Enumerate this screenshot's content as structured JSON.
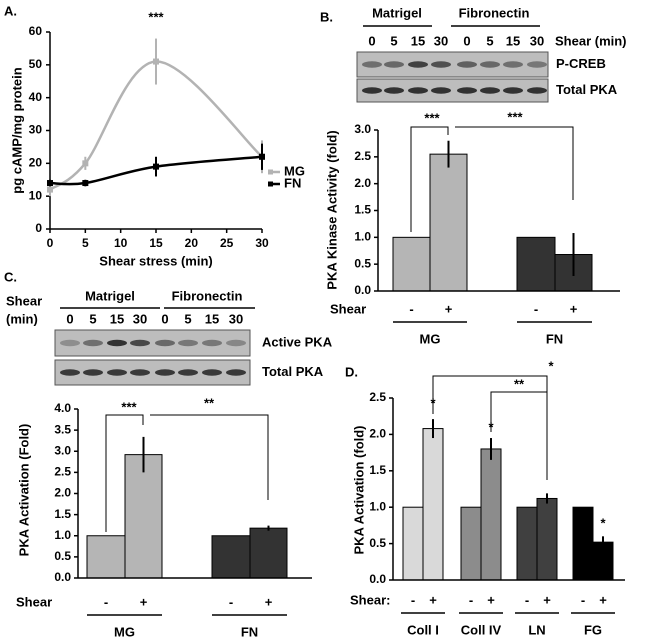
{
  "chart_data": [
    {
      "type": "line",
      "panel": "A.",
      "ylabel": "pg cAMP/mg protein",
      "xlabel": "Shear stress (min)",
      "x": [
        0,
        5,
        15,
        30
      ],
      "series": [
        {
          "name": "MG",
          "color": "#b3b3b3",
          "values": [
            12,
            20,
            51,
            22
          ],
          "errors": [
            2,
            2,
            7,
            5
          ]
        },
        {
          "name": "FN",
          "color": "#000000",
          "values": [
            14,
            14,
            19,
            22
          ],
          "errors": [
            1,
            1,
            3,
            4
          ]
        }
      ],
      "xlim": [
        0,
        30
      ],
      "ylim": [
        0,
        60
      ],
      "xticks": [
        0,
        5,
        10,
        15,
        20,
        25,
        30
      ],
      "yticks": [
        0,
        10,
        20,
        30,
        40,
        50,
        60
      ],
      "annotations": [
        "***"
      ]
    },
    {
      "type": "bar",
      "panel": "B.",
      "blot": {
        "groups": [
          "Matrigel",
          "Fibronectin"
        ],
        "lane_label": [
          "Shear (min)"
        ],
        "lanes": [
          "0",
          "5",
          "15",
          "30",
          "0",
          "5",
          "15",
          "30"
        ],
        "rows": [
          "P-CREB",
          "Total PKA"
        ]
      },
      "ylabel": "PKA Kinase Activity (fold)",
      "shear_label": "Shear",
      "categories": [
        "-",
        "+",
        "-",
        "+"
      ],
      "groups": [
        "MG",
        "FN"
      ],
      "values": [
        1,
        2.55,
        1,
        0.68
      ],
      "errors": [
        0,
        0.25,
        0,
        0.4
      ],
      "colors": [
        "#b5b5b5",
        "#b5b5b5",
        "#333333",
        "#333333"
      ],
      "ylim": [
        0,
        3
      ],
      "yticks": [
        {
          "value": 0,
          "label": "0.0"
        },
        {
          "value": 0.5,
          "label": "0.5"
        },
        {
          "value": 1,
          "label": "1.0"
        },
        {
          "value": 1.5,
          "label": "1.5"
        },
        {
          "value": 2,
          "label": "2.0"
        },
        {
          "value": 2.5,
          "label": "2.5"
        },
        {
          "value": 3,
          "label": "3.0"
        }
      ],
      "annotations": [
        "***",
        "***"
      ]
    },
    {
      "type": "bar",
      "panel": "C.",
      "blot": {
        "groups": [
          "Matrigel",
          "Fibronectin"
        ],
        "lane_label": [
          "Shear",
          "(min)"
        ],
        "lanes": [
          "0",
          "5",
          "15",
          "30",
          "0",
          "5",
          "15",
          "30"
        ],
        "rows": [
          "Active PKA",
          "Total PKA"
        ]
      },
      "ylabel": "PKA Activation (Fold)",
      "shear_label": "Shear",
      "categories": [
        "-",
        "+",
        "-",
        "+"
      ],
      "groups": [
        "MG",
        "FN"
      ],
      "values": [
        1,
        2.92,
        1,
        1.18
      ],
      "errors": [
        0,
        0.42,
        0,
        0.06
      ],
      "colors": [
        "#b5b5b5",
        "#b5b5b5",
        "#333333",
        "#333333"
      ],
      "ylim": [
        0,
        4
      ],
      "yticks": [
        {
          "value": 0,
          "label": "0.0"
        },
        {
          "value": 0.5,
          "label": "0.5"
        },
        {
          "value": 1,
          "label": "1.0"
        },
        {
          "value": 1.5,
          "label": "1.5"
        },
        {
          "value": 2,
          "label": "2.0"
        },
        {
          "value": 2.5,
          "label": "2.5"
        },
        {
          "value": 3,
          "label": "3.0"
        },
        {
          "value": 3.5,
          "label": "3.5"
        },
        {
          "value": 4,
          "label": "4.0"
        }
      ],
      "annotations": [
        "***",
        "**"
      ]
    },
    {
      "type": "bar",
      "panel": "D.",
      "ylabel": "PKA Activation (fold)",
      "shear_label": "Shear:",
      "categories": [
        "-",
        "+",
        "-",
        "+",
        "-",
        "+",
        "-",
        "+"
      ],
      "groups": [
        "Coll I",
        "Coll IV",
        "LN",
        "FG"
      ],
      "values": [
        1,
        2.08,
        1,
        1.8,
        1,
        1.12,
        1,
        0.52
      ],
      "errors": [
        0,
        0.13,
        0,
        0.15,
        0,
        0.07,
        0,
        0.08
      ],
      "colors": [
        "#d9d9d9",
        "#d9d9d9",
        "#8c8c8c",
        "#8c8c8c",
        "#404040",
        "#404040",
        "#000000",
        "#000000"
      ],
      "ylim": [
        0,
        2.5
      ],
      "yticks": [
        {
          "value": 0,
          "label": "0.0"
        },
        {
          "value": 0.5,
          "label": "0.5"
        },
        {
          "value": 1,
          "label": "1.0"
        },
        {
          "value": 1.5,
          "label": "1.5"
        },
        {
          "value": 2,
          "label": "2.0"
        },
        {
          "value": 2.5,
          "label": "2.5"
        }
      ],
      "annotations": [
        "*",
        "**",
        "*",
        "*",
        "*"
      ]
    }
  ]
}
